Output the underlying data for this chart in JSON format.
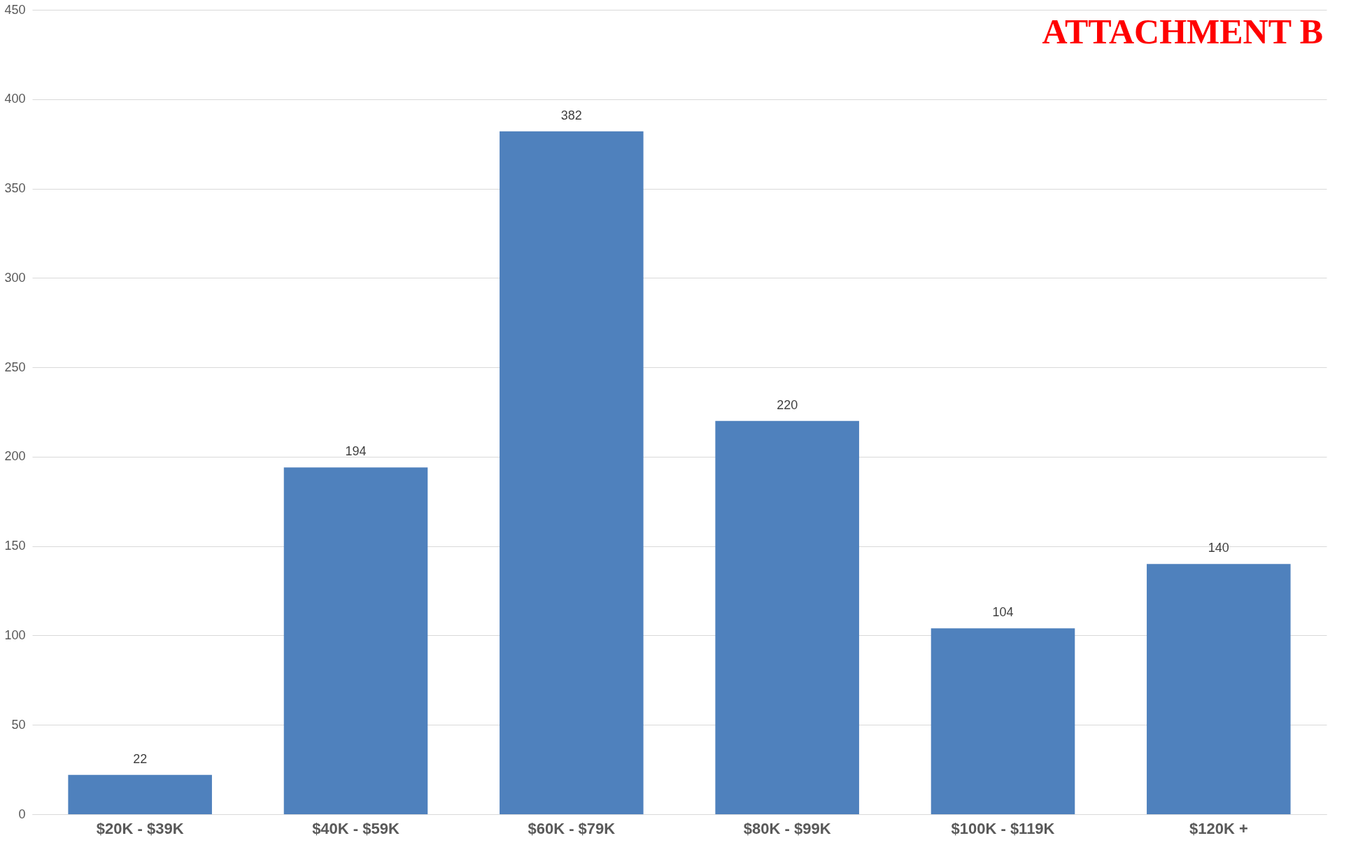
{
  "chart_data": {
    "type": "bar",
    "title": "ATTACHMENT B",
    "categories": [
      "$20K - $39K",
      "$40K - $59K",
      "$60K - $79K",
      "$80K - $99K",
      "$100K - $119K",
      "$120K +"
    ],
    "values": [
      22,
      194,
      382,
      220,
      104,
      140
    ],
    "color": "#4f81bd",
    "ylim": [
      0,
      450
    ],
    "yticks": [
      0,
      50,
      100,
      150,
      200,
      250,
      300,
      350,
      400,
      450
    ],
    "grid": "y",
    "data_labels": true
  }
}
